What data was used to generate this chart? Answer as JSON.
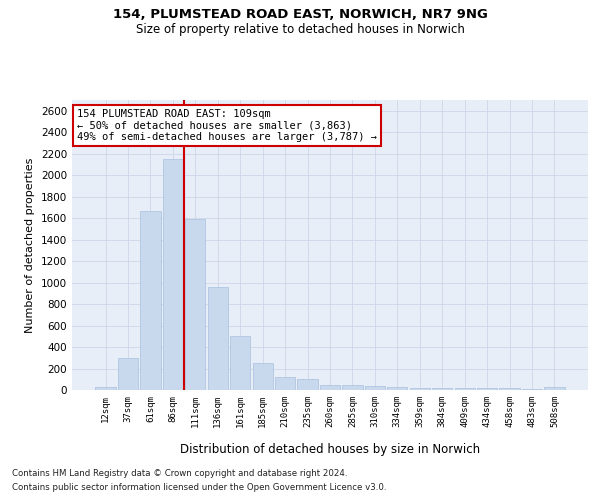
{
  "title": "154, PLUMSTEAD ROAD EAST, NORWICH, NR7 9NG",
  "subtitle": "Size of property relative to detached houses in Norwich",
  "xlabel": "Distribution of detached houses by size in Norwich",
  "ylabel": "Number of detached properties",
  "bar_color": "#c8d9ee",
  "bar_edge_color": "#a8c0de",
  "categories": [
    "12sqm",
    "37sqm",
    "61sqm",
    "86sqm",
    "111sqm",
    "136sqm",
    "161sqm",
    "185sqm",
    "210sqm",
    "235sqm",
    "260sqm",
    "285sqm",
    "310sqm",
    "334sqm",
    "359sqm",
    "384sqm",
    "409sqm",
    "434sqm",
    "458sqm",
    "483sqm",
    "508sqm"
  ],
  "values": [
    25,
    300,
    1670,
    2150,
    1590,
    960,
    500,
    250,
    120,
    100,
    50,
    50,
    35,
    30,
    20,
    20,
    20,
    15,
    20,
    5,
    25
  ],
  "ylim": [
    0,
    2700
  ],
  "yticks": [
    0,
    200,
    400,
    600,
    800,
    1000,
    1200,
    1400,
    1600,
    1800,
    2000,
    2200,
    2400,
    2600
  ],
  "vline_idx": 4,
  "vline_color": "#cc0000",
  "annotation_text": "154 PLUMSTEAD ROAD EAST: 109sqm\n← 50% of detached houses are smaller (3,863)\n49% of semi-detached houses are larger (3,787) →",
  "annotation_box_color": "#ffffff",
  "annotation_box_edge": "#cc0000",
  "footnote_line1": "Contains HM Land Registry data © Crown copyright and database right 2024.",
  "footnote_line2": "Contains public sector information licensed under the Open Government Licence v3.0.",
  "grid_color": "#cdd6e8",
  "background_color": "#e8eef8"
}
